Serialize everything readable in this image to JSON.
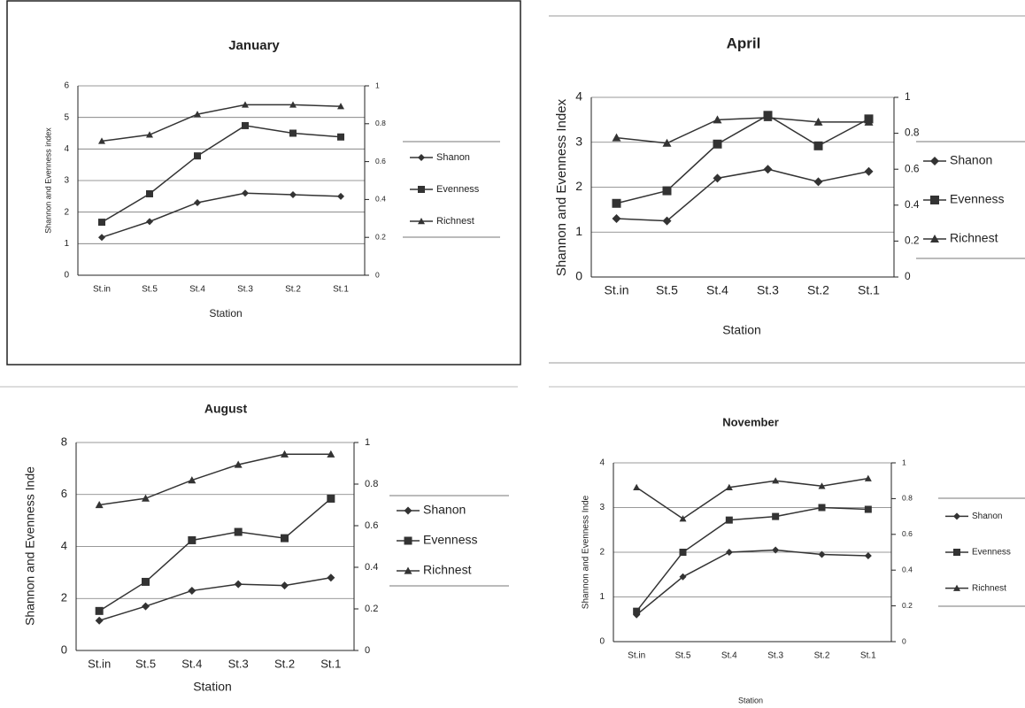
{
  "chart_data": [
    {
      "type": "line",
      "title": "January",
      "x_label": "Station",
      "y_label": "Shannon and Evenness index",
      "categories": [
        "St.in",
        "St.5",
        "St.4",
        "St.3",
        "St.2",
        "St.1"
      ],
      "ylim": [
        0,
        6
      ],
      "yticks": [
        0,
        1,
        2,
        3,
        4,
        5,
        6
      ],
      "y2lim": [
        0,
        1
      ],
      "y2ticks": [
        0,
        0.2,
        0.4,
        0.6,
        0.8,
        1
      ],
      "grid": true,
      "legend": "right",
      "series": [
        {
          "name": "Shanon",
          "color": "#333333",
          "values": [
            1.2,
            1.7,
            2.3,
            2.6,
            2.55,
            2.5
          ]
        },
        {
          "name": "Evenness",
          "color": "#333333",
          "axis": "y2",
          "values": [
            0.28,
            0.43,
            0.63,
            0.79,
            0.75,
            0.73
          ]
        },
        {
          "name": "Richnest",
          "color": "#333333",
          "values": [
            4.25,
            4.45,
            5.1,
            5.4,
            5.4,
            5.35
          ]
        }
      ]
    },
    {
      "type": "line",
      "title": "April",
      "x_label": "Station",
      "y_label": "Shannon and Evenness Index",
      "categories": [
        "St.in",
        "St.5",
        "St.4",
        "St.3",
        "St.2",
        "St.1"
      ],
      "ylim": [
        0,
        4
      ],
      "yticks": [
        0,
        1,
        2,
        3,
        4
      ],
      "y2lim": [
        0,
        1
      ],
      "y2ticks": [
        0,
        0.2,
        0.4,
        0.6,
        0.8,
        1
      ],
      "grid": true,
      "legend": "right",
      "series": [
        {
          "name": "Shanon",
          "color": "#333333",
          "values": [
            1.3,
            1.25,
            2.2,
            2.4,
            2.12,
            2.35
          ]
        },
        {
          "name": "Evenness",
          "color": "#333333",
          "axis": "y2",
          "values": [
            0.41,
            0.48,
            0.74,
            0.9,
            0.73,
            0.88
          ]
        },
        {
          "name": "Richnest",
          "color": "#333333",
          "values": [
            3.1,
            2.98,
            3.5,
            3.55,
            3.45,
            3.45
          ]
        }
      ]
    },
    {
      "type": "line",
      "title": "August",
      "x_label": "Station",
      "y_label": "Shannon and Evenness Inde",
      "categories": [
        "St.in",
        "St.5",
        "St.4",
        "St.3",
        "St.2",
        "St.1"
      ],
      "ylim": [
        0,
        8
      ],
      "yticks": [
        0,
        2,
        4,
        6,
        8
      ],
      "y2lim": [
        0,
        1
      ],
      "y2ticks": [
        0,
        0.2,
        0.4,
        0.6,
        0.8,
        1
      ],
      "grid": true,
      "legend": "right",
      "series": [
        {
          "name": "Shanon",
          "color": "#333333",
          "values": [
            1.15,
            1.7,
            2.3,
            2.55,
            2.5,
            2.8
          ]
        },
        {
          "name": "Evenness",
          "color": "#333333",
          "axis": "y2",
          "values": [
            0.19,
            0.33,
            0.53,
            0.57,
            0.54,
            0.73
          ]
        },
        {
          "name": "Richnest",
          "color": "#333333",
          "values": [
            5.6,
            5.85,
            6.55,
            7.15,
            7.55,
            7.55
          ]
        }
      ]
    },
    {
      "type": "line",
      "title": "November",
      "x_label": "Station",
      "y_label": "Shannon and Evenness Inde",
      "categories": [
        "St.in",
        "St.5",
        "St.4",
        "St.3",
        "St.2",
        "St.1"
      ],
      "ylim": [
        0,
        4
      ],
      "yticks": [
        0,
        1,
        2,
        3,
        4
      ],
      "y2lim": [
        0,
        1
      ],
      "y2ticks": [
        0,
        0.2,
        0.4,
        0.6,
        0.8,
        1
      ],
      "grid": true,
      "legend": "right",
      "series": [
        {
          "name": "Shanon",
          "color": "#333333",
          "values": [
            0.6,
            1.45,
            2.0,
            2.05,
            1.95,
            1.92
          ]
        },
        {
          "name": "Evenness",
          "color": "#333333",
          "axis": "y2",
          "values": [
            0.17,
            0.5,
            0.68,
            0.7,
            0.75,
            0.74
          ]
        },
        {
          "name": "Richnest",
          "color": "#333333",
          "values": [
            3.45,
            2.75,
            3.45,
            3.6,
            3.48,
            3.65
          ]
        }
      ]
    }
  ]
}
